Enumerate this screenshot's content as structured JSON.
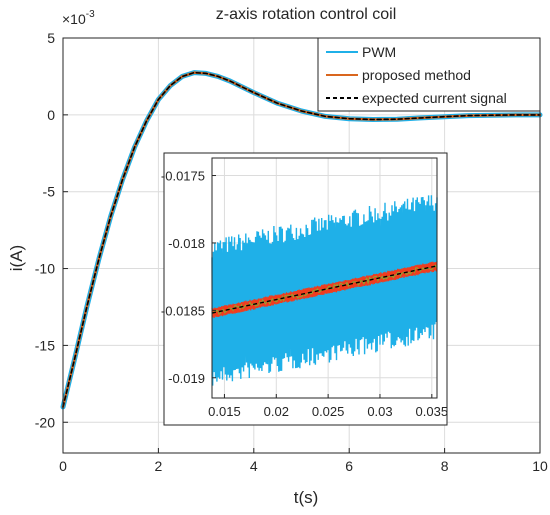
{
  "chart_data": [
    {
      "type": "line",
      "title": "z-axis rotation control coil",
      "xlabel": "t(s)",
      "ylabel": "i(A)",
      "exponent_label": "×10",
      "exponent_power": "-3",
      "xlim": [
        0,
        10
      ],
      "ylim": [
        -22,
        5
      ],
      "xticks": [
        0,
        2,
        4,
        6,
        8,
        10
      ],
      "xtick_labels": [
        "0",
        "2",
        "4",
        "6",
        "8",
        "10"
      ],
      "yticks": [
        -20,
        -15,
        -10,
        -5,
        0,
        5
      ],
      "ytick_labels": [
        "-20",
        "-15",
        "-10",
        "-5",
        "0",
        "5"
      ],
      "y_units_scale": 0.001,
      "grid": true,
      "legend_position": "top-right",
      "series": [
        {
          "name": "PWM",
          "color": "#1fb0e8",
          "style": "solid",
          "x": [
            0,
            0.25,
            0.5,
            0.75,
            1.0,
            1.25,
            1.5,
            1.75,
            2.0,
            2.25,
            2.5,
            2.75,
            3.0,
            3.25,
            3.5,
            4.0,
            4.5,
            5.0,
            5.5,
            6.0,
            6.5,
            7.0,
            7.5,
            8.0,
            8.5,
            9.0,
            9.5,
            10.0
          ],
          "y": [
            -19.0,
            -15.8,
            -12.5,
            -9.4,
            -6.6,
            -4.2,
            -2.1,
            -0.4,
            1.0,
            1.9,
            2.5,
            2.75,
            2.7,
            2.5,
            2.2,
            1.45,
            0.75,
            0.25,
            -0.1,
            -0.25,
            -0.3,
            -0.28,
            -0.2,
            -0.12,
            -0.05,
            -0.02,
            0.0,
            0.0
          ]
        },
        {
          "name": "proposed method",
          "color": "#d9661e",
          "style": "solid",
          "x": [
            0,
            0.25,
            0.5,
            0.75,
            1.0,
            1.25,
            1.5,
            1.75,
            2.0,
            2.25,
            2.5,
            2.75,
            3.0,
            3.25,
            3.5,
            4.0,
            4.5,
            5.0,
            5.5,
            6.0,
            6.5,
            7.0,
            7.5,
            8.0,
            8.5,
            9.0,
            9.5,
            10.0
          ],
          "y": [
            -19.0,
            -15.8,
            -12.5,
            -9.4,
            -6.6,
            -4.2,
            -2.1,
            -0.4,
            1.0,
            1.9,
            2.5,
            2.75,
            2.7,
            2.5,
            2.2,
            1.45,
            0.75,
            0.25,
            -0.1,
            -0.25,
            -0.3,
            -0.28,
            -0.2,
            -0.12,
            -0.05,
            -0.02,
            0.0,
            0.0
          ]
        },
        {
          "name": "expected current signal",
          "color": "#000000",
          "style": "dashed",
          "x": [
            0,
            0.25,
            0.5,
            0.75,
            1.0,
            1.25,
            1.5,
            1.75,
            2.0,
            2.25,
            2.5,
            2.75,
            3.0,
            3.25,
            3.5,
            4.0,
            4.5,
            5.0,
            5.5,
            6.0,
            6.5,
            7.0,
            7.5,
            8.0,
            8.5,
            9.0,
            9.5,
            10.0
          ],
          "y": [
            -19.0,
            -15.8,
            -12.5,
            -9.4,
            -6.6,
            -4.2,
            -2.1,
            -0.4,
            1.0,
            1.9,
            2.5,
            2.75,
            2.7,
            2.5,
            2.2,
            1.45,
            0.75,
            0.25,
            -0.1,
            -0.25,
            -0.3,
            -0.28,
            -0.2,
            -0.12,
            -0.05,
            -0.02,
            0.0,
            0.0
          ]
        }
      ]
    },
    {
      "type": "line",
      "title": "",
      "xlabel": "",
      "ylabel": "",
      "xlim": [
        0.0138,
        0.0355
      ],
      "ylim": [
        -0.01915,
        -0.01737
      ],
      "xticks": [
        0.015,
        0.02,
        0.025,
        0.03,
        0.035
      ],
      "xtick_labels": [
        "0.015",
        "0.02",
        "0.025",
        "0.03",
        "0.035"
      ],
      "yticks": [
        -0.0175,
        -0.018,
        -0.0185,
        -0.019
      ],
      "ytick_labels": [
        "-0.0175",
        "-0.018",
        "-0.0185",
        "-0.019"
      ],
      "grid": true,
      "series": [
        {
          "name": "PWM",
          "color": "#1fb0e8",
          "style": "band",
          "x": [
            0.0138,
            0.0355
          ],
          "y_center": [
            -0.01852,
            -0.01817
          ],
          "ripple_amplitude": 0.00055
        },
        {
          "name": "proposed method",
          "color": "#f03c1e",
          "style": "band",
          "x": [
            0.0138,
            0.0355
          ],
          "y_center": [
            -0.01852,
            -0.01817
          ],
          "ripple_amplitude": 4e-05
        },
        {
          "name": "expected current signal",
          "color": "#000000",
          "style": "dashed",
          "x": [
            0.0138,
            0.0355
          ],
          "y": [
            -0.01852,
            -0.01817
          ]
        }
      ]
    }
  ]
}
